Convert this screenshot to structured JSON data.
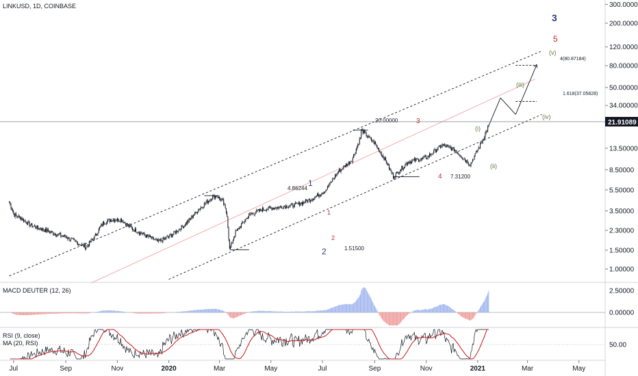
{
  "header": {
    "symbol_title": "LINKUSD, 1D, COINBASE"
  },
  "price_axis": {
    "ticks": [
      "300.00000",
      "200.00000",
      "120.00000",
      "80.00000",
      "50.00000",
      "34.00000",
      "21.91089",
      "13.50000",
      "8.50000",
      "5.50000",
      "3.50000",
      "2.30000",
      "1.50000",
      "1.00000"
    ],
    "current_price": "21.91089"
  },
  "time_axis": {
    "ticks": [
      "Jul",
      "Sep",
      "Nov",
      "2020",
      "Mar",
      "May",
      "Jul",
      "Sep",
      "Nov",
      "2021",
      "Mar",
      "May"
    ],
    "bold_ticks": [
      "2020",
      "2021"
    ]
  },
  "annotations": {
    "wave_1": "1",
    "wave_2": "2",
    "wave_3_minor": "3",
    "wave_4_minor": "4",
    "wave_3_major": "3",
    "wave_5": "5",
    "sub_1": "1",
    "sub_2": "2",
    "wave_i": "(i)",
    "wave_ii": "(ii)",
    "wave_iii": "(iii)",
    "wave_iv": "(iv)",
    "wave_v": "(v)",
    "level_4_86244": "4.86244",
    "level_1_51500": "1.51500",
    "level_20": "20.00000",
    "level_7_31200": "7.31200",
    "fib_4": "4(80.87184)",
    "fib_1618": "1.618(37.05828)"
  },
  "macd": {
    "label": "MACD DEUTER (12, 26)",
    "ticks": [
      "2.50000",
      "0.00000"
    ]
  },
  "rsi": {
    "label_1": "RSI (9, close)",
    "label_2": "MA (20, RSI)",
    "ticks": [
      "50.00"
    ]
  },
  "colors": {
    "candle": "#131722",
    "channel": "#131722",
    "midline": "#f4a3a3",
    "macd_pos": "#9fb4ee",
    "macd_neg": "#ef9a9a",
    "rsi_line": "#131722",
    "rsi_ma": "#c62828",
    "major_wave": "#2a3b77",
    "minor_wave": "#c62828",
    "sub_wave": "#5d7a3a"
  },
  "chart_data": {
    "type": "candlestick",
    "title": "LINKUSD, 1D, COINBASE",
    "y_scale": "log",
    "ylim": [
      0.75,
      330
    ],
    "x_range": [
      "2019-06-15",
      "2021-06-01"
    ],
    "close_series": [
      {
        "date": "2019-06-26",
        "close": 4.2
      },
      {
        "date": "2019-07-02",
        "close": 3.2
      },
      {
        "date": "2019-07-10",
        "close": 3.0
      },
      {
        "date": "2019-07-20",
        "close": 2.6
      },
      {
        "date": "2019-08-01",
        "close": 2.4
      },
      {
        "date": "2019-08-15",
        "close": 2.2
      },
      {
        "date": "2019-09-01",
        "close": 2.0
      },
      {
        "date": "2019-09-15",
        "close": 1.75
      },
      {
        "date": "2019-09-25",
        "close": 1.6
      },
      {
        "date": "2019-10-05",
        "close": 2.0
      },
      {
        "date": "2019-10-15",
        "close": 2.7
      },
      {
        "date": "2019-10-25",
        "close": 2.9
      },
      {
        "date": "2019-11-05",
        "close": 2.9
      },
      {
        "date": "2019-11-20",
        "close": 2.35
      },
      {
        "date": "2019-12-05",
        "close": 2.05
      },
      {
        "date": "2019-12-20",
        "close": 1.8
      },
      {
        "date": "2020-01-05",
        "close": 2.1
      },
      {
        "date": "2020-01-20",
        "close": 2.6
      },
      {
        "date": "2020-02-05",
        "close": 3.6
      },
      {
        "date": "2020-02-20",
        "close": 4.6
      },
      {
        "date": "2020-02-26",
        "close": 4.86
      },
      {
        "date": "2020-03-05",
        "close": 4.3
      },
      {
        "date": "2020-03-10",
        "close": 3.2
      },
      {
        "date": "2020-03-13",
        "close": 1.515
      },
      {
        "date": "2020-03-20",
        "close": 2.2
      },
      {
        "date": "2020-04-05",
        "close": 3.2
      },
      {
        "date": "2020-04-20",
        "close": 3.6
      },
      {
        "date": "2020-05-10",
        "close": 3.8
      },
      {
        "date": "2020-06-01",
        "close": 4.0
      },
      {
        "date": "2020-06-20",
        "close": 4.6
      },
      {
        "date": "2020-07-05",
        "close": 5.5
      },
      {
        "date": "2020-07-20",
        "close": 8.2
      },
      {
        "date": "2020-08-05",
        "close": 10.5
      },
      {
        "date": "2020-08-15",
        "close": 17.0
      },
      {
        "date": "2020-08-16",
        "close": 20.0
      },
      {
        "date": "2020-09-01",
        "close": 15.0
      },
      {
        "date": "2020-09-15",
        "close": 10.0
      },
      {
        "date": "2020-09-23",
        "close": 7.312
      },
      {
        "date": "2020-10-10",
        "close": 10.0
      },
      {
        "date": "2020-11-01",
        "close": 11.0
      },
      {
        "date": "2020-11-20",
        "close": 14.5
      },
      {
        "date": "2020-12-05",
        "close": 13.0
      },
      {
        "date": "2020-12-23",
        "close": 9.5
      },
      {
        "date": "2021-01-05",
        "close": 15.0
      },
      {
        "date": "2021-01-14",
        "close": 21.91
      }
    ],
    "projection": [
      {
        "date": "2021-01-14",
        "price": 21.91
      },
      {
        "date": "2021-01-28",
        "price": 40.0
      },
      {
        "date": "2021-02-15",
        "price": 28.0
      },
      {
        "date": "2021-03-12",
        "price": 82.0
      }
    ],
    "levels": [
      {
        "label": "4.86244",
        "value": 4.86244
      },
      {
        "label": "1.51500",
        "value": 1.515
      },
      {
        "label": "20.00000",
        "value": 20.0
      },
      {
        "label": "7.31200",
        "value": 7.312
      },
      {
        "label": "4(80.87184)",
        "value": 80.87184
      },
      {
        "label": "1.618(37.05828)",
        "value": 37.05828
      }
    ],
    "current_price": 21.91089
  }
}
